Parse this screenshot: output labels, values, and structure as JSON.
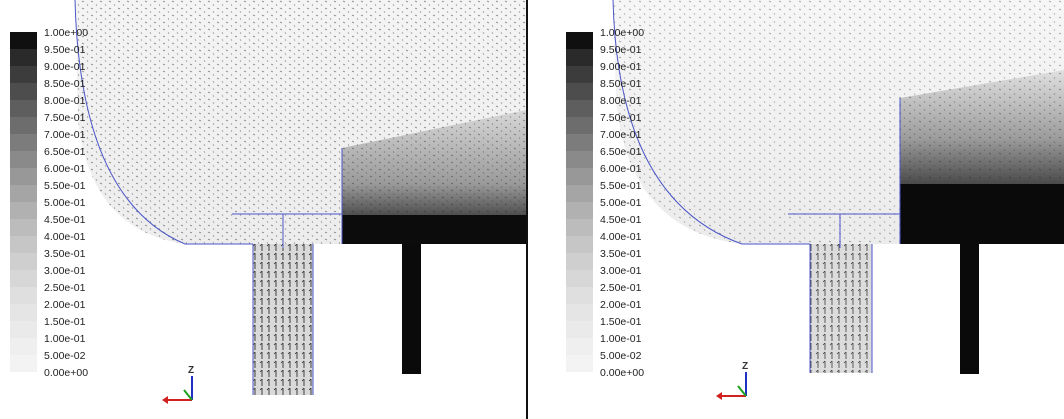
{
  "panels": [
    {
      "id": "left",
      "legend_labels": [
        "1.00e+00",
        "9.50e-01",
        "9.00e-01",
        "8.50e-01",
        "8.00e-01",
        "7.50e-01",
        "7.00e-01",
        "6.50e-01",
        "6.00e-01",
        "5.50e-01",
        "5.00e-01",
        "4.50e-01",
        "4.00e-01",
        "3.50e-01",
        "3.00e-01",
        "2.50e-01",
        "2.00e-01",
        "1.50e-01",
        "1.00e-01",
        "5.00e-02",
        "0.00e+00"
      ],
      "axis_label": "Z"
    },
    {
      "id": "right",
      "legend_labels": [
        "1.00e+00",
        "9.50e-01",
        "9.00e-01",
        "8.50e-01",
        "8.00e-01",
        "7.50e-01",
        "7.00e-01",
        "6.50e-01",
        "6.00e-01",
        "5.50e-01",
        "5.00e-01",
        "4.50e-01",
        "4.00e-01",
        "3.50e-01",
        "3.00e-01",
        "2.50e-01",
        "2.00e-01",
        "1.50e-01",
        "1.00e-01",
        "5.00e-02",
        "0.00e+00"
      ],
      "axis_label": "Z"
    }
  ],
  "colors": {
    "legend_dark": "#111111",
    "legend_light": "#f2f2f2",
    "outline": "#4b56c8",
    "vector": "#1a1a1a",
    "axis_x": "#d02020",
    "axis_y": "#20a020",
    "axis_z": "#2030c0"
  }
}
